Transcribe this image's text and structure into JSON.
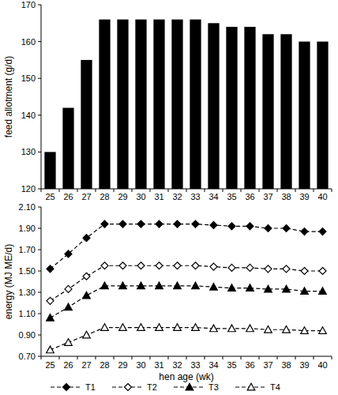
{
  "chart_data": [
    {
      "type": "bar",
      "y_label": "feed allotment (g/d)",
      "categories": [
        "25",
        "26",
        "27",
        "28",
        "29",
        "30",
        "31",
        "32",
        "33",
        "34",
        "35",
        "36",
        "37",
        "38",
        "39",
        "40"
      ],
      "values": [
        130,
        142,
        155,
        166,
        166,
        166,
        166,
        166,
        166,
        165,
        164,
        164,
        162,
        162,
        160,
        160
      ],
      "color": "#000000",
      "ylim": [
        120,
        170
      ],
      "yticks": [
        120,
        130,
        140,
        150,
        160,
        170
      ],
      "grid": false
    },
    {
      "type": "line",
      "x_label": "hen age (wk)",
      "y_label": "energy (MJ ME/d)",
      "categories": [
        "25",
        "26",
        "27",
        "28",
        "29",
        "30",
        "31",
        "32",
        "33",
        "34",
        "35",
        "36",
        "37",
        "38",
        "39",
        "40"
      ],
      "series": [
        {
          "name": "T1",
          "color": "#000000",
          "marker": "diamond",
          "line_style": "dashed",
          "values": [
            1.52,
            1.66,
            1.81,
            1.94,
            1.94,
            1.94,
            1.94,
            1.94,
            1.94,
            1.93,
            1.92,
            1.92,
            1.9,
            1.9,
            1.87,
            1.87
          ]
        },
        {
          "name": "T2",
          "color": "#000000",
          "marker": "diamond-open",
          "line_style": "dashed",
          "values": [
            1.22,
            1.33,
            1.45,
            1.55,
            1.55,
            1.55,
            1.55,
            1.55,
            1.55,
            1.54,
            1.53,
            1.53,
            1.52,
            1.52,
            1.5,
            1.5
          ]
        },
        {
          "name": "T3",
          "color": "#000000",
          "marker": "triangle",
          "line_style": "dashed",
          "values": [
            1.06,
            1.16,
            1.27,
            1.36,
            1.36,
            1.36,
            1.36,
            1.36,
            1.36,
            1.35,
            1.34,
            1.34,
            1.33,
            1.33,
            1.31,
            1.31
          ]
        },
        {
          "name": "T4",
          "color": "#000000",
          "marker": "triangle-open",
          "line_style": "dashed",
          "values": [
            0.76,
            0.83,
            0.9,
            0.97,
            0.97,
            0.97,
            0.97,
            0.97,
            0.97,
            0.96,
            0.96,
            0.96,
            0.95,
            0.95,
            0.94,
            0.94
          ]
        }
      ],
      "ylim": [
        0.7,
        2.1
      ],
      "yticks": [
        {
          "value": 0.7,
          "label": "0.70"
        },
        {
          "value": 0.9,
          "label": "0.90"
        },
        {
          "value": 1.1,
          "label": "1.10"
        },
        {
          "value": 1.3,
          "label": "1.30"
        },
        {
          "value": 1.5,
          "label": "1.50"
        },
        {
          "value": 1.7,
          "label": "1.70"
        },
        {
          "value": 1.9,
          "label": "1.90"
        },
        {
          "value": 2.1,
          "label": "2.10"
        }
      ],
      "grid": false,
      "legend": "bottom"
    }
  ]
}
